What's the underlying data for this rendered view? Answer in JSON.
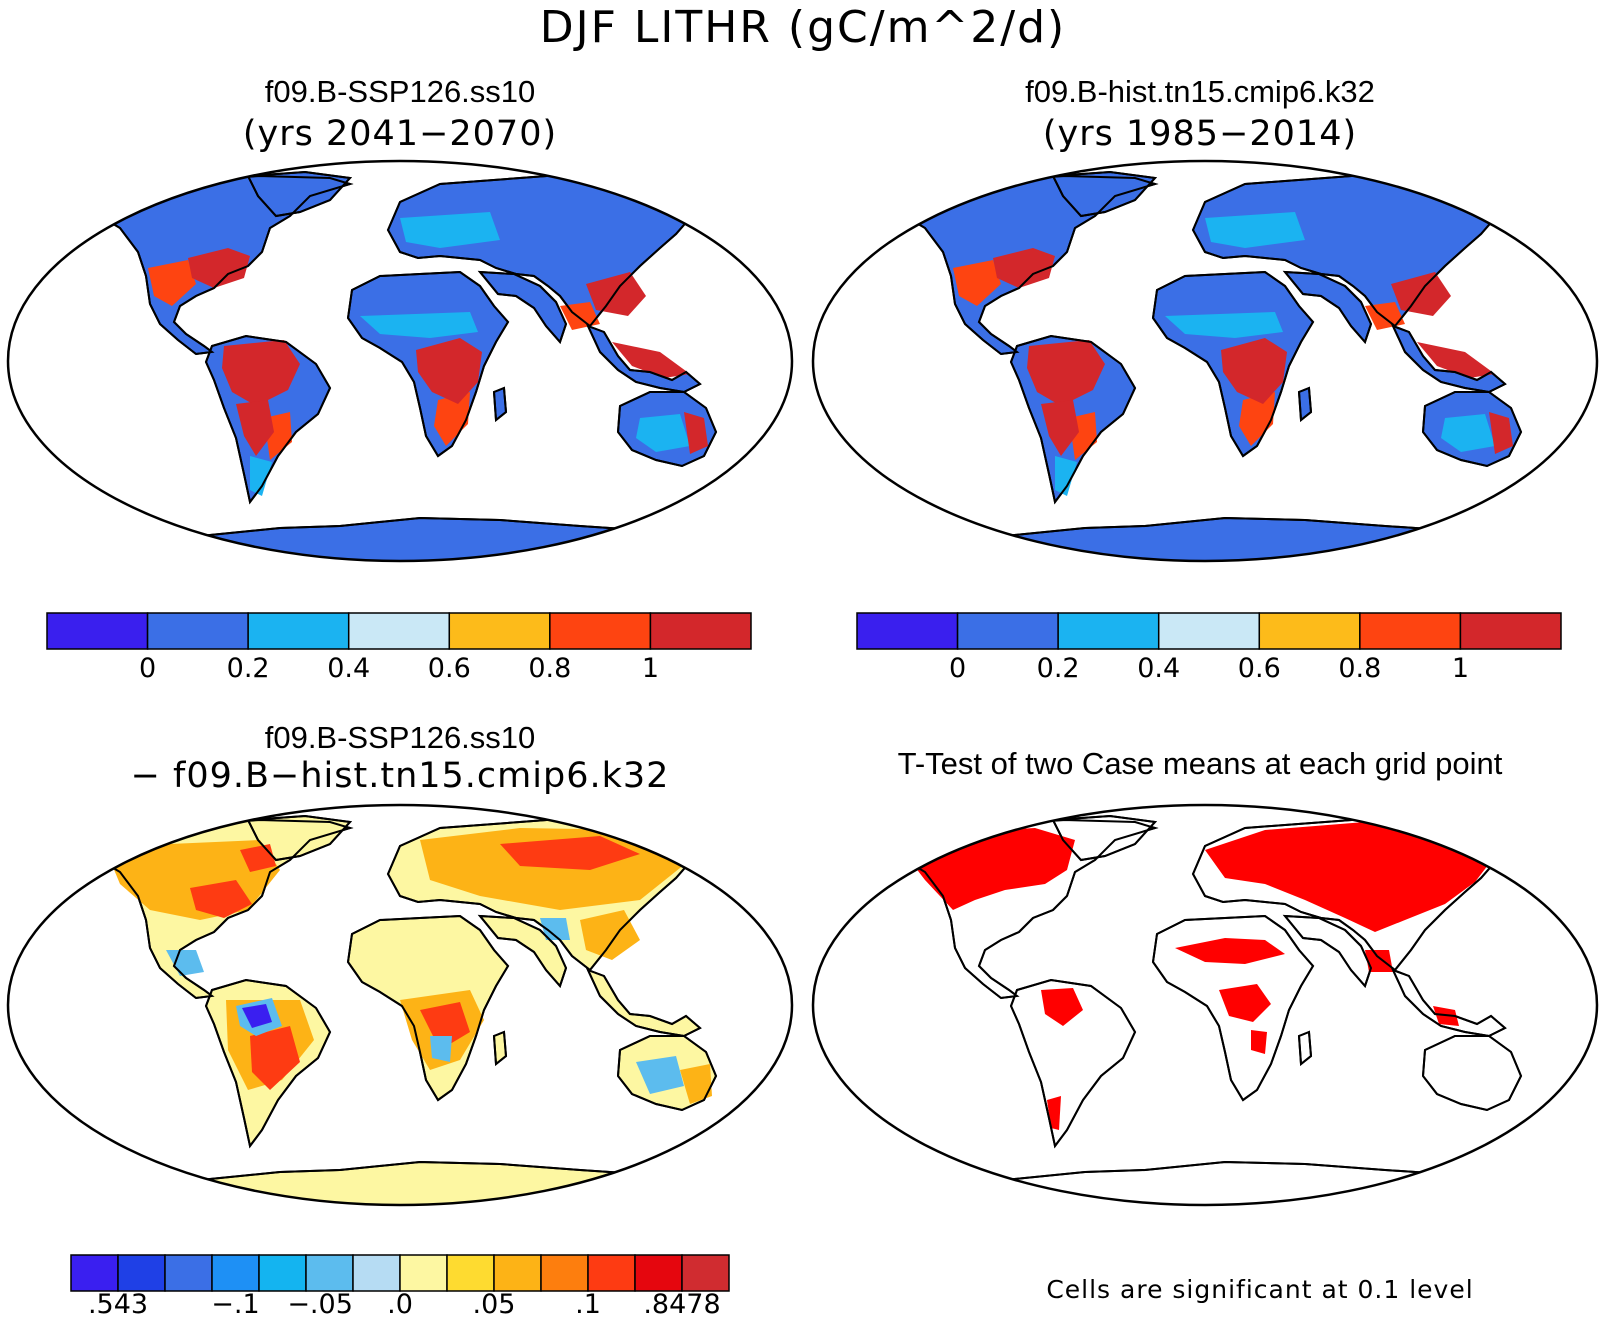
{
  "figure": {
    "title": "DJF LITHR (gC/m^2/d)"
  },
  "panels": {
    "top_left": {
      "title": "f09.B-SSP126.ss10",
      "subtitle": "(yrs 2041−2070)"
    },
    "top_right": {
      "title": "f09.B-hist.tn15.cmip6.k32",
      "subtitle": "(yrs 1985−2014)"
    },
    "bottom_left": {
      "title": "f09.B-SSP126.ss10",
      "subtitle": "− f09.B−hist.tn15.cmip6.k32"
    },
    "bottom_right": {
      "title": "T-Test of two Case means at each grid point",
      "note": "Cells are significant at 0.1 level"
    }
  },
  "colorbars": {
    "field": {
      "colors": [
        "#3a1fee",
        "#3b6fe6",
        "#1bb3f1",
        "#cae8f6",
        "#fdbb1a",
        "#fe4411",
        "#d3272b"
      ],
      "tick_labels": [
        "0",
        "0.2",
        "0.4",
        "0.6",
        "0.8",
        "1"
      ]
    },
    "difference": {
      "colors": [
        "#3a1ff0",
        "#1f40e6",
        "#3b6fe6",
        "#1e90f5",
        "#14b4f0",
        "#5cbcee",
        "#b6dcf3",
        "#fdf7a2",
        "#fedb30",
        "#fdb316",
        "#fd7e0e",
        "#fe3b12",
        "#e5060e",
        "#d02c30"
      ],
      "tick_labels": [
        ".543",
        "−.1",
        "−.05",
        ".0",
        ".05",
        ".1",
        ".8478"
      ]
    }
  },
  "map_colors": {
    "ocean": "#ffffff",
    "land_low": "#3b6fe6",
    "land_mid": "#1bb3f1",
    "land_high": "#d3272b",
    "land_warm": "#fe4411",
    "diff_base": "#fdf7a2",
    "diff_warm": "#fdb316",
    "diff_hot": "#fe3b12",
    "diff_cold": "#5cbcee",
    "signif": "#ff0000"
  }
}
